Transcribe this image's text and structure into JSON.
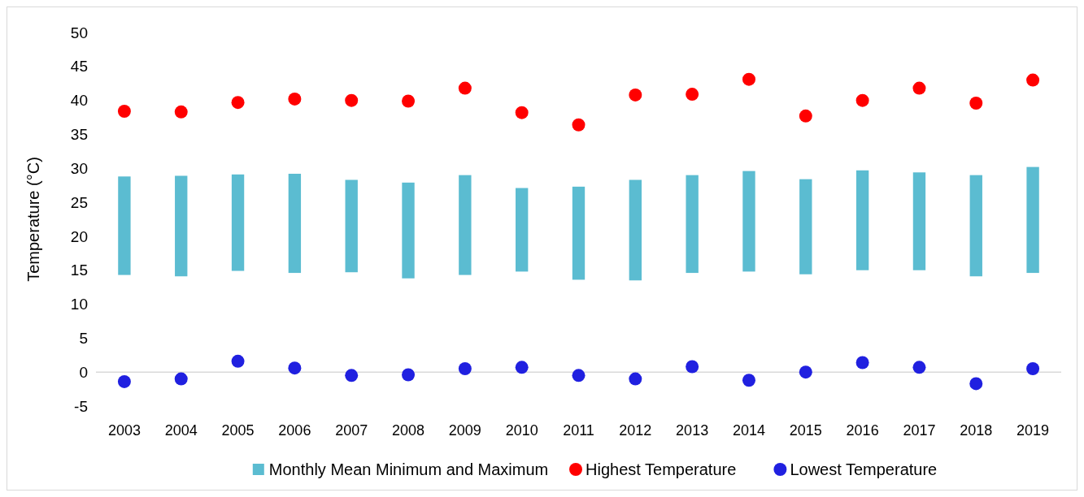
{
  "chart_data": {
    "type": "bar",
    "ylabel": "Temperature (°C)",
    "categories": [
      "2003",
      "2004",
      "2005",
      "2006",
      "2007",
      "2008",
      "2009",
      "2010",
      "2011",
      "2012",
      "2013",
      "2014",
      "2015",
      "2016",
      "2017",
      "2018",
      "2019"
    ],
    "series": [
      {
        "name": "Monthly Mean Minimum and Maximum",
        "color": "#5bbcd1",
        "base": [
          14.3,
          14.1,
          14.9,
          14.6,
          14.7,
          13.8,
          14.3,
          14.8,
          13.6,
          13.5,
          14.6,
          14.8,
          14.4,
          15.0,
          15.0,
          14.1,
          14.6
        ],
        "values": [
          14.5,
          14.8,
          14.2,
          14.6,
          13.6,
          14.1,
          14.7,
          12.3,
          13.7,
          14.8,
          14.4,
          14.8,
          14.0,
          14.7,
          14.4,
          14.9,
          15.6
        ]
      },
      {
        "name": "Highest Temperature",
        "type": "scatter",
        "color": "#ff0000",
        "values": [
          38.4,
          38.3,
          39.7,
          40.2,
          40.0,
          39.9,
          41.8,
          38.2,
          36.4,
          40.8,
          40.9,
          43.1,
          37.7,
          40.0,
          41.8,
          39.6,
          43.0
        ]
      },
      {
        "name": "Lowest Temperature",
        "type": "scatter",
        "color": "#2020e0",
        "values": [
          -1.4,
          -1.0,
          1.6,
          0.6,
          -0.5,
          -0.4,
          0.5,
          0.7,
          -0.5,
          -1.0,
          0.8,
          -1.2,
          0.0,
          1.4,
          0.7,
          -1.7,
          0.5
        ]
      }
    ],
    "ylim": [
      -5,
      50
    ],
    "yticks": [
      -5,
      0,
      5,
      10,
      15,
      20,
      25,
      30,
      35,
      40,
      45,
      50
    ],
    "legend": "bottom",
    "marker": "circle"
  }
}
